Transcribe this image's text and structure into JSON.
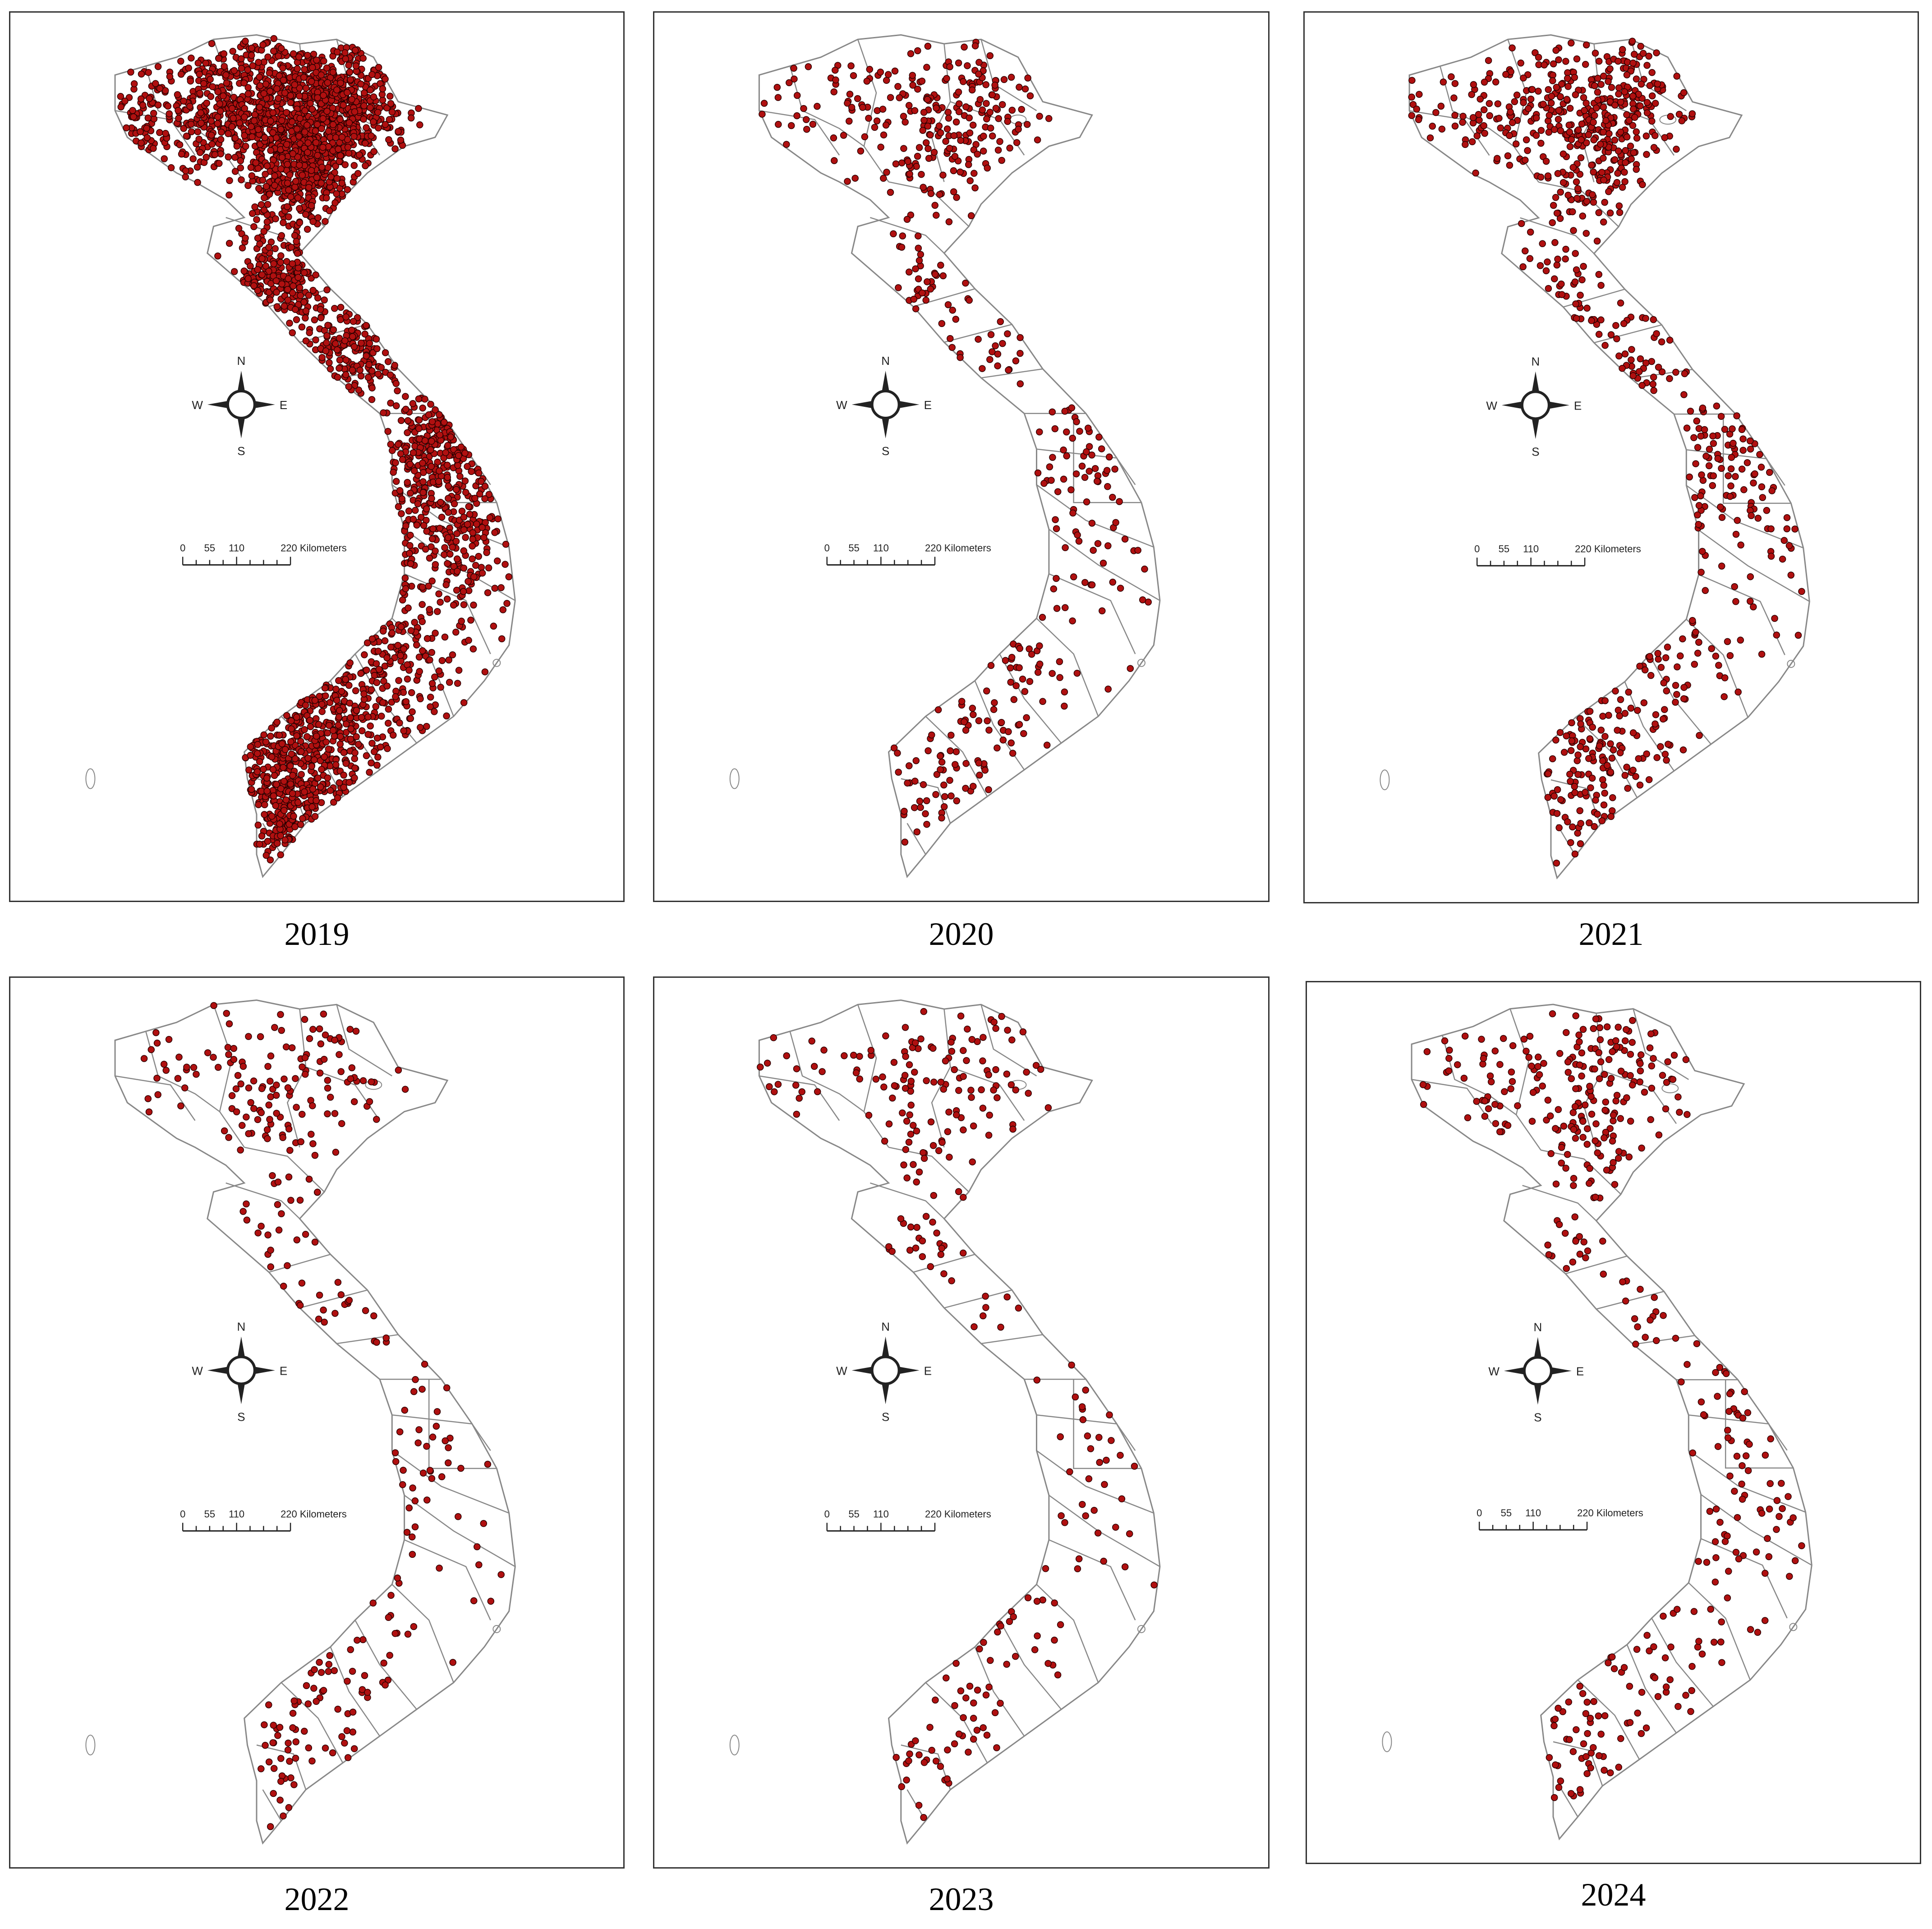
{
  "figure": {
    "panels": [
      {
        "year_label": "2019",
        "density": 1.0
      },
      {
        "year_label": "2020",
        "density": 0.16
      },
      {
        "year_label": "2021",
        "density": 0.27
      },
      {
        "year_label": "2022",
        "density": 0.1
      },
      {
        "year_label": "2023",
        "density": 0.085
      },
      {
        "year_label": "2024",
        "density": 0.13
      }
    ],
    "compass": {
      "north": "N",
      "south": "S",
      "east": "E",
      "west": "W"
    },
    "scale_bar": {
      "ticks": [
        "0",
        "55",
        "110",
        "220 Kilometers"
      ]
    },
    "colors": {
      "point_fill": "#b01010",
      "point_stroke": "#2a0000",
      "boundary": "#888888",
      "frame": "#333333"
    }
  }
}
